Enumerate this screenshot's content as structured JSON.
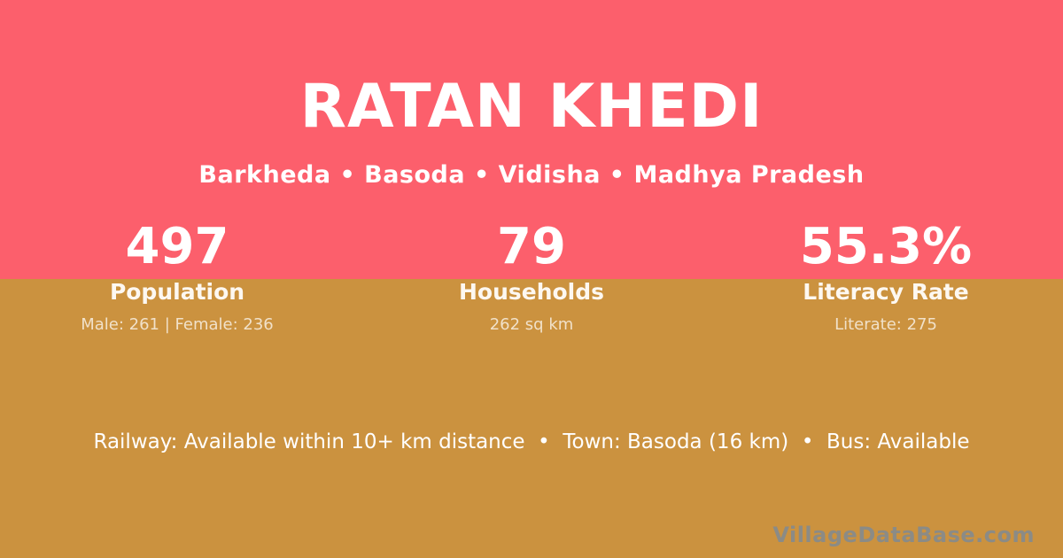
{
  "colors": {
    "top_bg": "#fc5f6c",
    "bottom_bg": "#cb923f",
    "text_primary": "#ffffff",
    "watermark": "#8b8b86"
  },
  "header": {
    "title": "RATAN KHEDI",
    "subtitle": "Barkheda • Basoda • Vidisha • Madhya Pradesh"
  },
  "stats": [
    {
      "value": "497",
      "label": "Population",
      "detail": "Male: 261 | Female: 236"
    },
    {
      "value": "79",
      "label": "Households",
      "detail": "262 sq km"
    },
    {
      "value": "55.3%",
      "label": "Literacy Rate",
      "detail": "Literate: 275"
    }
  ],
  "footer": {
    "info_line": "Railway: Available within 10+ km distance  •  Town: Basoda (16 km)  •  Bus: Available",
    "watermark": "VillageDataBase.com"
  }
}
